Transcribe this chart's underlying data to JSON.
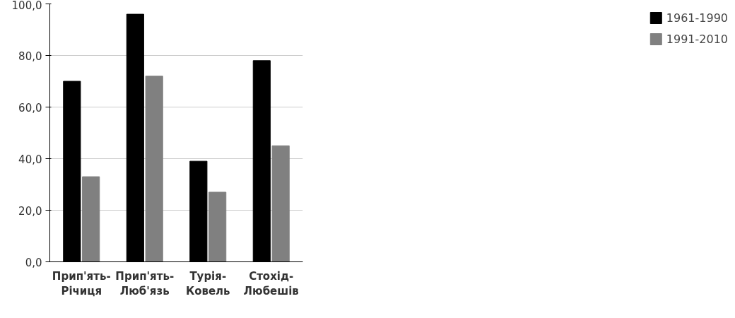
{
  "chart_data": {
    "type": "bar",
    "categories": [
      "Прип'ять-\nРічиця",
      "Прип'ять-\nЛюб'язь",
      "Турія-\nКовель",
      "Стохід-\nЛюбешів"
    ],
    "series": [
      {
        "name": "1961-1990",
        "color": "#000000",
        "values": [
          70,
          96,
          39,
          78
        ]
      },
      {
        "name": "1991-2010",
        "color": "#808080",
        "values": [
          33,
          72,
          27,
          45
        ]
      }
    ],
    "ylim": [
      0,
      100
    ],
    "yticks": [
      {
        "value": 0,
        "label": "0,0"
      },
      {
        "value": 20,
        "label": "20,0"
      },
      {
        "value": 40,
        "label": "40,0"
      },
      {
        "value": 60,
        "label": "60,0"
      },
      {
        "value": 80,
        "label": "80,0"
      },
      {
        "value": 100,
        "label": "100,0"
      }
    ],
    "grid": "y",
    "legend": "right"
  }
}
